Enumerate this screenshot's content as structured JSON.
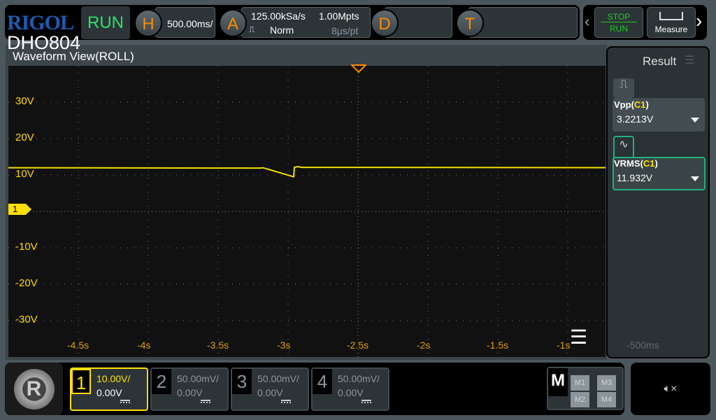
{
  "header": {
    "brand": "RIGOL",
    "model": "DHO804",
    "run_state": "RUN",
    "horizontal": {
      "icon": "H",
      "scale": "500.00ms/"
    },
    "acquire": {
      "icon": "A",
      "sample_rate": "125.00kSa/s",
      "mode": "Norm",
      "memory_depth": "1.00Mpts",
      "time_per_point": "8μs/pt"
    },
    "display_icon": "D",
    "trigger_icon": "T",
    "stop_run": {
      "top": "STOP",
      "bottom": "RUN"
    },
    "measure_label": "Measure"
  },
  "waveform": {
    "title": "Waveform View(ROLL)",
    "y_labels": [
      "30V",
      "20V",
      "10V",
      "-10V",
      "-20V",
      "-30V"
    ],
    "x_labels": [
      "-4.5s",
      "-4s",
      "-3.5s",
      "-3s",
      "-2.5s",
      "-2s",
      "-1.5s",
      "-1s",
      "-500ms"
    ],
    "channel_marker": "1",
    "trace_color": "#f0e000"
  },
  "result_panel": {
    "title": "Result",
    "measurements": [
      {
        "name": "Vpp",
        "source": "C1",
        "value": "3.2213V"
      },
      {
        "name": "VRMS",
        "source": "C1",
        "value": "11.932V"
      }
    ]
  },
  "channels": [
    {
      "num": "1",
      "scale": "10.00V/",
      "offset": "0.00V",
      "active": true,
      "color": "#ffe000"
    },
    {
      "num": "2",
      "scale": "50.00mV/",
      "offset": "0.00V",
      "active": false
    },
    {
      "num": "3",
      "scale": "50.00mV/",
      "offset": "0.00V",
      "active": false
    },
    {
      "num": "4",
      "scale": "50.00mV/",
      "offset": "0.00V",
      "active": false
    }
  ],
  "math": {
    "label": "M",
    "buttons": [
      "M1",
      "M3",
      "M2",
      "M4"
    ]
  }
}
